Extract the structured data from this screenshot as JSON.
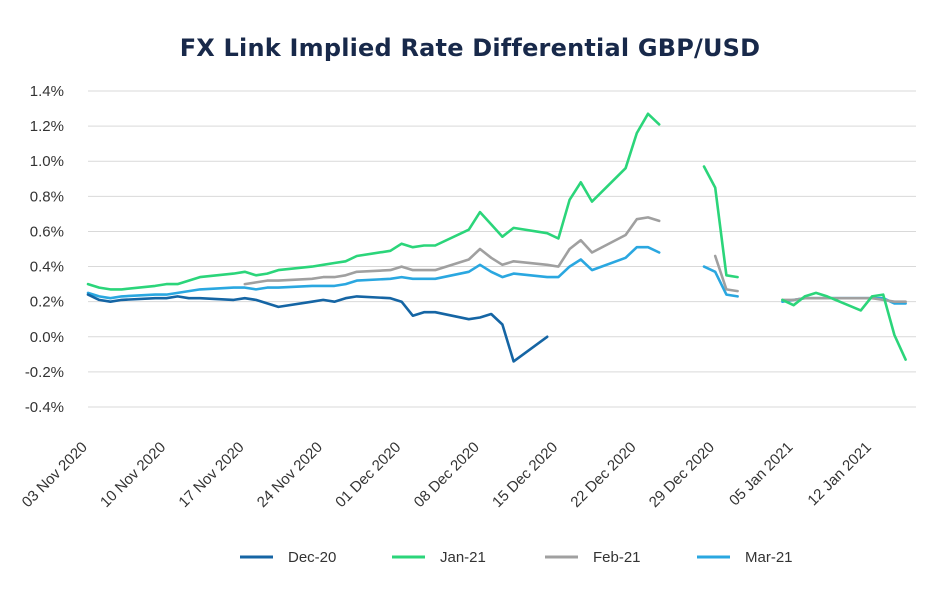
{
  "chart_data": {
    "type": "line",
    "title": "FX Link Implied Rate Differential GBP/USD",
    "xlabel": "",
    "ylabel": "",
    "ylim": [
      -0.4,
      1.4
    ],
    "y_tick_labels": [
      "1.4%",
      "1.2%",
      "1.0%",
      "0.8%",
      "0.6%",
      "0.4%",
      "0.2%",
      "0.0%",
      "-0.2%",
      "-0.4%"
    ],
    "y_tick_values": [
      1.4,
      1.2,
      1.0,
      0.8,
      0.6,
      0.4,
      0.2,
      0.0,
      -0.2,
      -0.4
    ],
    "x_tick_labels": [
      "03 Nov 2020",
      "10 Nov 2020",
      "17 Nov 2020",
      "24 Nov 2020",
      "01 Dec 2020",
      "08 Dec 2020",
      "15 Dec 2020",
      "22 Dec 2020",
      "29 Dec 2020",
      "05 Jan 2021",
      "12 Jan 2021"
    ],
    "x_tick_dates": [
      "2020-11-03",
      "2020-11-10",
      "2020-11-17",
      "2020-11-24",
      "2020-12-01",
      "2020-12-08",
      "2020-12-15",
      "2020-12-22",
      "2020-12-29",
      "2021-01-05",
      "2021-01-12"
    ],
    "x_range": [
      "2020-11-03",
      "2021-01-16"
    ],
    "grid": "horizontal",
    "legend_position": "bottom",
    "series": [
      {
        "name": "Dec-20",
        "color": "#1565a4",
        "segments": [
          [
            [
              "2020-11-03",
              0.24
            ],
            [
              "2020-11-04",
              0.21
            ],
            [
              "2020-11-05",
              0.2
            ],
            [
              "2020-11-06",
              0.21
            ],
            [
              "2020-11-09",
              0.22
            ],
            [
              "2020-11-10",
              0.22
            ],
            [
              "2020-11-11",
              0.23
            ],
            [
              "2020-11-12",
              0.22
            ],
            [
              "2020-11-13",
              0.22
            ],
            [
              "2020-11-16",
              0.21
            ],
            [
              "2020-11-17",
              0.22
            ],
            [
              "2020-11-18",
              0.21
            ],
            [
              "2020-11-19",
              0.19
            ],
            [
              "2020-11-20",
              0.17
            ],
            [
              "2020-11-23",
              0.2
            ],
            [
              "2020-11-24",
              0.21
            ],
            [
              "2020-11-25",
              0.2
            ],
            [
              "2020-11-26",
              0.22
            ],
            [
              "2020-11-27",
              0.23
            ],
            [
              "2020-11-30",
              0.22
            ],
            [
              "2020-12-01",
              0.2
            ],
            [
              "2020-12-02",
              0.12
            ],
            [
              "2020-12-03",
              0.14
            ],
            [
              "2020-12-04",
              0.14
            ],
            [
              "2020-12-07",
              0.1
            ],
            [
              "2020-12-08",
              0.11
            ],
            [
              "2020-12-09",
              0.13
            ],
            [
              "2020-12-10",
              0.07
            ],
            [
              "2020-12-11",
              -0.14
            ],
            [
              "2020-12-14",
              0.0
            ]
          ]
        ]
      },
      {
        "name": "Jan-21",
        "color": "#2bd57a",
        "segments": [
          [
            [
              "2020-11-03",
              0.3
            ],
            [
              "2020-11-04",
              0.28
            ],
            [
              "2020-11-05",
              0.27
            ],
            [
              "2020-11-06",
              0.27
            ],
            [
              "2020-11-09",
              0.29
            ],
            [
              "2020-11-10",
              0.3
            ],
            [
              "2020-11-11",
              0.3
            ],
            [
              "2020-11-12",
              0.32
            ],
            [
              "2020-11-13",
              0.34
            ],
            [
              "2020-11-16",
              0.36
            ],
            [
              "2020-11-17",
              0.37
            ],
            [
              "2020-11-18",
              0.35
            ],
            [
              "2020-11-19",
              0.36
            ],
            [
              "2020-11-20",
              0.38
            ],
            [
              "2020-11-23",
              0.4
            ],
            [
              "2020-11-24",
              0.41
            ],
            [
              "2020-11-25",
              0.42
            ],
            [
              "2020-11-26",
              0.43
            ],
            [
              "2020-11-27",
              0.46
            ],
            [
              "2020-11-30",
              0.49
            ],
            [
              "2020-12-01",
              0.53
            ],
            [
              "2020-12-02",
              0.51
            ],
            [
              "2020-12-03",
              0.52
            ],
            [
              "2020-12-04",
              0.52
            ],
            [
              "2020-12-07",
              0.61
            ],
            [
              "2020-12-08",
              0.71
            ],
            [
              "2020-12-09",
              0.64
            ],
            [
              "2020-12-10",
              0.57
            ],
            [
              "2020-12-11",
              0.62
            ],
            [
              "2020-12-14",
              0.59
            ],
            [
              "2020-12-15",
              0.56
            ],
            [
              "2020-12-16",
              0.78
            ],
            [
              "2020-12-17",
              0.88
            ],
            [
              "2020-12-18",
              0.77
            ],
            [
              "2020-12-21",
              0.96
            ],
            [
              "2020-12-22",
              1.16
            ],
            [
              "2020-12-23",
              1.27
            ],
            [
              "2020-12-24",
              1.21
            ]
          ],
          [
            [
              "2020-12-28",
              0.97
            ],
            [
              "2020-12-29",
              0.85
            ],
            [
              "2020-12-30",
              0.35
            ],
            [
              "2020-12-31",
              0.34
            ]
          ],
          [
            [
              "2021-01-04",
              0.21
            ],
            [
              "2021-01-05",
              0.18
            ],
            [
              "2021-01-06",
              0.23
            ],
            [
              "2021-01-07",
              0.25
            ],
            [
              "2021-01-08",
              0.23
            ],
            [
              "2021-01-11",
              0.15
            ],
            [
              "2021-01-12",
              0.23
            ],
            [
              "2021-01-13",
              0.24
            ],
            [
              "2021-01-14",
              0.01
            ],
            [
              "2021-01-15",
              -0.13
            ]
          ]
        ]
      },
      {
        "name": "Feb-21",
        "color": "#a0a0a0",
        "segments": [
          [
            [
              "2020-11-17",
              0.3
            ],
            [
              "2020-11-18",
              0.31
            ],
            [
              "2020-11-19",
              0.32
            ],
            [
              "2020-11-20",
              0.32
            ],
            [
              "2020-11-23",
              0.33
            ],
            [
              "2020-11-24",
              0.34
            ],
            [
              "2020-11-25",
              0.34
            ],
            [
              "2020-11-26",
              0.35
            ],
            [
              "2020-11-27",
              0.37
            ],
            [
              "2020-11-30",
              0.38
            ],
            [
              "2020-12-01",
              0.4
            ],
            [
              "2020-12-02",
              0.38
            ],
            [
              "2020-12-03",
              0.38
            ],
            [
              "2020-12-04",
              0.38
            ],
            [
              "2020-12-07",
              0.44
            ],
            [
              "2020-12-08",
              0.5
            ],
            [
              "2020-12-09",
              0.45
            ],
            [
              "2020-12-10",
              0.41
            ],
            [
              "2020-12-11",
              0.43
            ],
            [
              "2020-12-14",
              0.41
            ],
            [
              "2020-12-15",
              0.4
            ],
            [
              "2020-12-16",
              0.5
            ],
            [
              "2020-12-17",
              0.55
            ],
            [
              "2020-12-18",
              0.48
            ],
            [
              "2020-12-21",
              0.58
            ],
            [
              "2020-12-22",
              0.67
            ],
            [
              "2020-12-23",
              0.68
            ],
            [
              "2020-12-24",
              0.66
            ]
          ],
          [
            [
              "2020-12-29",
              0.46
            ],
            [
              "2020-12-30",
              0.27
            ],
            [
              "2020-12-31",
              0.26
            ]
          ],
          [
            [
              "2021-01-04",
              0.21
            ],
            [
              "2021-01-05",
              0.21
            ],
            [
              "2021-01-06",
              0.22
            ],
            [
              "2021-01-07",
              0.22
            ],
            [
              "2021-01-08",
              0.22
            ],
            [
              "2021-01-11",
              0.22
            ],
            [
              "2021-01-12",
              0.22
            ],
            [
              "2021-01-13",
              0.21
            ],
            [
              "2021-01-14",
              0.2
            ],
            [
              "2021-01-15",
              0.2
            ]
          ]
        ]
      },
      {
        "name": "Mar-21",
        "color": "#2aa7e0",
        "segments": [
          [
            [
              "2020-11-03",
              0.25
            ],
            [
              "2020-11-04",
              0.23
            ],
            [
              "2020-11-05",
              0.22
            ],
            [
              "2020-11-06",
              0.23
            ],
            [
              "2020-11-09",
              0.24
            ],
            [
              "2020-11-10",
              0.24
            ],
            [
              "2020-11-11",
              0.25
            ],
            [
              "2020-11-12",
              0.26
            ],
            [
              "2020-11-13",
              0.27
            ],
            [
              "2020-11-16",
              0.28
            ],
            [
              "2020-11-17",
              0.28
            ],
            [
              "2020-11-18",
              0.27
            ],
            [
              "2020-11-19",
              0.28
            ],
            [
              "2020-11-20",
              0.28
            ],
            [
              "2020-11-23",
              0.29
            ],
            [
              "2020-11-24",
              0.29
            ],
            [
              "2020-11-25",
              0.29
            ],
            [
              "2020-11-26",
              0.3
            ],
            [
              "2020-11-27",
              0.32
            ],
            [
              "2020-11-30",
              0.33
            ],
            [
              "2020-12-01",
              0.34
            ],
            [
              "2020-12-02",
              0.33
            ],
            [
              "2020-12-03",
              0.33
            ],
            [
              "2020-12-04",
              0.33
            ],
            [
              "2020-12-07",
              0.37
            ],
            [
              "2020-12-08",
              0.41
            ],
            [
              "2020-12-09",
              0.37
            ],
            [
              "2020-12-10",
              0.34
            ],
            [
              "2020-12-11",
              0.36
            ],
            [
              "2020-12-14",
              0.34
            ],
            [
              "2020-12-15",
              0.34
            ],
            [
              "2020-12-16",
              0.4
            ],
            [
              "2020-12-17",
              0.44
            ],
            [
              "2020-12-18",
              0.38
            ],
            [
              "2020-12-21",
              0.45
            ],
            [
              "2020-12-22",
              0.51
            ],
            [
              "2020-12-23",
              0.51
            ],
            [
              "2020-12-24",
              0.48
            ]
          ],
          [
            [
              "2020-12-28",
              0.4
            ],
            [
              "2020-12-29",
              0.37
            ],
            [
              "2020-12-30",
              0.24
            ],
            [
              "2020-12-31",
              0.23
            ]
          ],
          [
            [
              "2021-01-04",
              0.2
            ],
            [
              "2021-01-05",
              0.21
            ],
            [
              "2021-01-06",
              0.22
            ],
            [
              "2021-01-07",
              0.22
            ],
            [
              "2021-01-08",
              0.22
            ],
            [
              "2021-01-11",
              0.22
            ],
            [
              "2021-01-12",
              0.22
            ],
            [
              "2021-01-13",
              0.22
            ],
            [
              "2021-01-14",
              0.19
            ],
            [
              "2021-01-15",
              0.19
            ]
          ]
        ]
      }
    ]
  }
}
